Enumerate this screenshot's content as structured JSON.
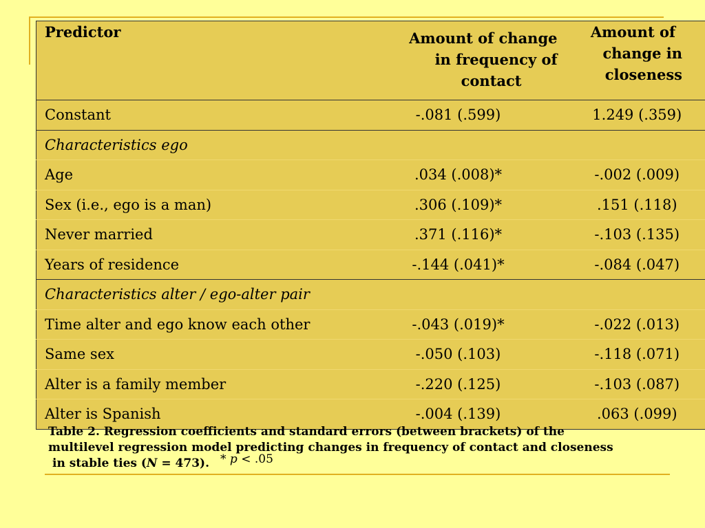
{
  "table": {
    "headers": {
      "predictor": "Predictor",
      "frequency": [
        "Amount of change",
        "in frequency of",
        "contact"
      ],
      "closeness": [
        "Amount of",
        "change in",
        "closeness"
      ]
    },
    "constant": {
      "label": "Constant",
      "freq": "-.081 (.599)",
      "close": "1.249 (.359)"
    },
    "section_ego": "Characteristics ego",
    "ego_rows": [
      {
        "label": "Age",
        "freq": ".034 (.008)*",
        "close": "-.002 (.009)"
      },
      {
        "label": "Sex (i.e., ego is a man)",
        "freq": ".306 (.109)*",
        "close": ".151 (.118)"
      },
      {
        "label": "Never married",
        "freq": ".371 (.116)*",
        "close": "-.103 (.135)"
      },
      {
        "label": "Years of residence",
        "freq": "-.144 (.041)*",
        "close": "-.084 (.047)"
      }
    ],
    "section_alter": "Characteristics alter / ego-alter pair",
    "alter_rows": [
      {
        "label": "Time alter and ego know each other",
        "freq": "-.043 (.019)*",
        "close": "-.022 (.013)"
      },
      {
        "label": "Same sex",
        "freq": "-.050 (.103)",
        "close": "-.118 (.071)"
      },
      {
        "label": "Alter is a family member",
        "freq": "-.220 (.125)",
        "close": "-.103 (.087)"
      },
      {
        "label": "Alter is Spanish",
        "freq": "-.004 (.139)",
        "close": ".063 (.099)"
      }
    ]
  },
  "caption": {
    "line1": "Table 2. Regression coefficients and standard errors (between brackets) of the",
    "line2": "multilevel regression model predicting changes in frequency of contact and closeness",
    "line3_pre": "in stable ties (",
    "line3_n": "N",
    "line3_post": " = 473).",
    "sig_star": "* ",
    "sig_p": "p",
    "sig_rest": " < .05"
  },
  "colors": {
    "background": "#ffff99",
    "table_fill": "#e6cc55",
    "accent_line": "#e0b020"
  }
}
